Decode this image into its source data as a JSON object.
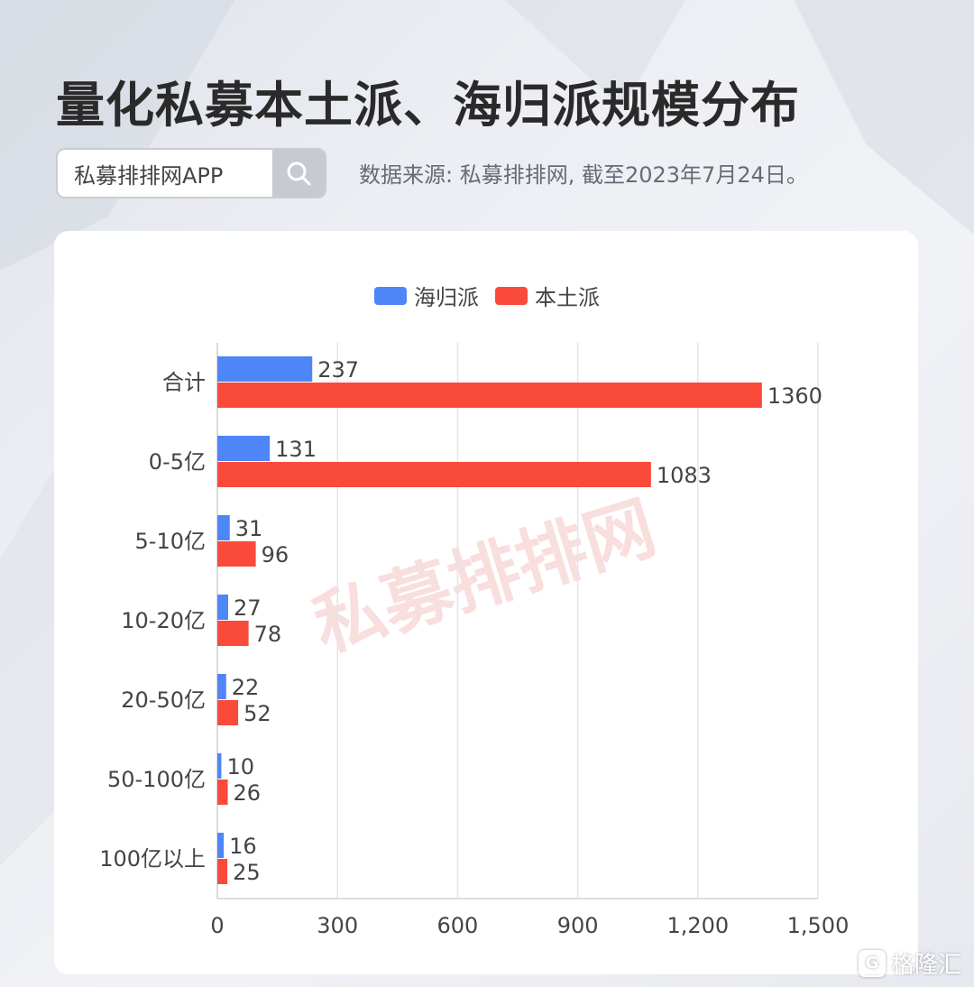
{
  "header": {
    "title": "量化私募本土派、海归派规模分布",
    "search_text": "私募排排网APP",
    "source": "数据来源: 私募排排网, 截至2023年7月24日。"
  },
  "watermark": {
    "center_text": "私募排排网",
    "corner_text": "格隆汇"
  },
  "colors": {
    "series_a": "#4e86f7",
    "series_b": "#fa4a3a",
    "watermark": "#f7d4d4"
  },
  "chart_data": {
    "type": "bar",
    "orientation": "horizontal",
    "categories": [
      "合计",
      "0-5亿",
      "5-10亿",
      "10-20亿",
      "20-50亿",
      "50-100亿",
      "100亿以上"
    ],
    "series": [
      {
        "name": "海归派",
        "values": [
          237,
          131,
          31,
          27,
          22,
          10,
          16
        ]
      },
      {
        "name": "本土派",
        "values": [
          1360,
          1083,
          96,
          78,
          52,
          26,
          25
        ]
      }
    ],
    "xlim": [
      0,
      1500
    ],
    "xticks": [
      0,
      300,
      600,
      900,
      1200,
      1500
    ],
    "xtick_labels": [
      "0",
      "300",
      "600",
      "900",
      "1,200",
      "1,500"
    ],
    "legend_position": "top-center",
    "grid": true,
    "data_labels": true
  }
}
